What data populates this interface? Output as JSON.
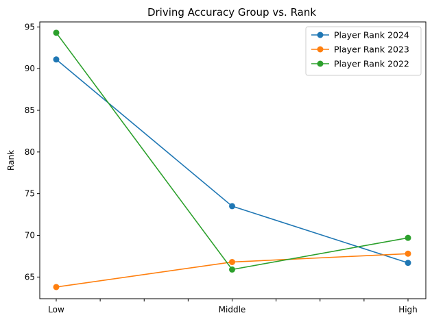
{
  "chart_data": {
    "type": "line",
    "title": "Driving Accuracy Group vs. Rank",
    "xlabel": "",
    "ylabel": "Rank",
    "categories": [
      "Low",
      "Middle",
      "High"
    ],
    "ylim": [
      62.4,
      95.6
    ],
    "yticks": [
      65,
      70,
      75,
      80,
      85,
      90,
      95
    ],
    "grid": false,
    "legend_position": "top-right",
    "series": [
      {
        "name": "Player Rank 2024",
        "color": "#1f77b4",
        "marker": "circle",
        "values": [
          91.1,
          73.5,
          66.7
        ]
      },
      {
        "name": "Player Rank 2023",
        "color": "#ff7f0e",
        "marker": "circle",
        "values": [
          63.8,
          66.8,
          67.8
        ]
      },
      {
        "name": "Player Rank 2022",
        "color": "#2ca02c",
        "marker": "circle",
        "values": [
          94.3,
          65.9,
          69.7
        ]
      }
    ]
  }
}
